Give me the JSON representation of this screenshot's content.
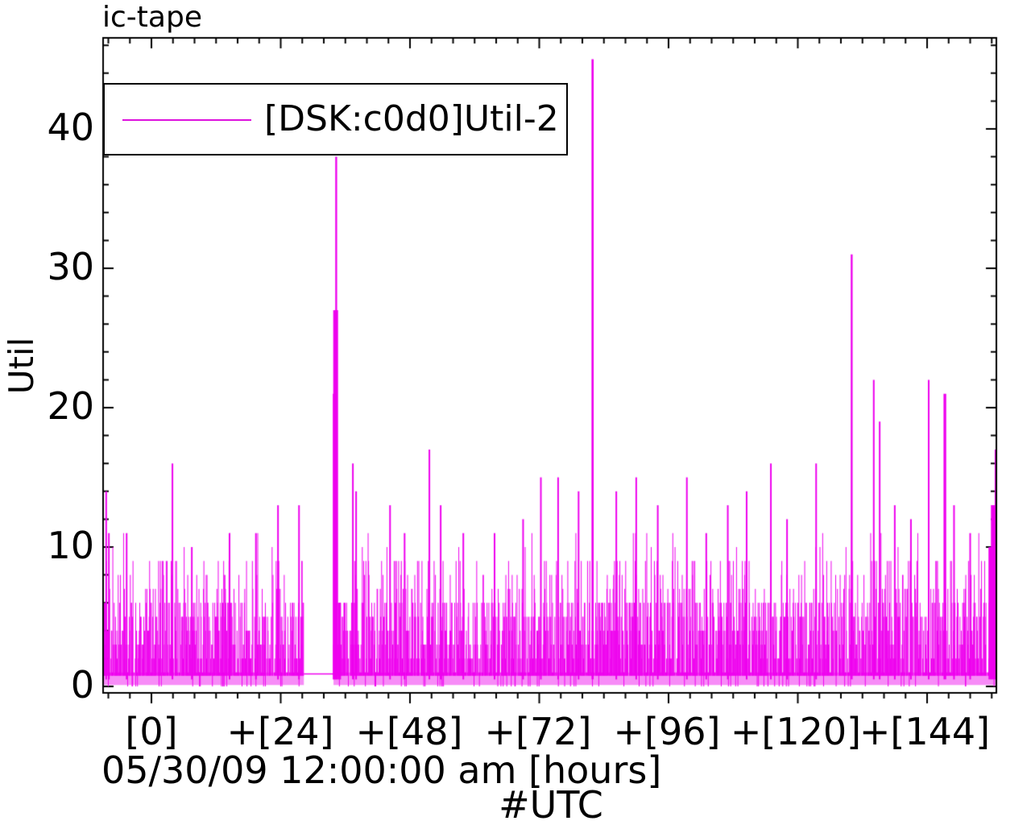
{
  "title": "ic-tape",
  "legend": {
    "label": "[DSK:c0d0]Util-2",
    "line_color": "#dd11dd"
  },
  "colors": {
    "series": "#ee00ee",
    "axis": "#000000",
    "background": "#ffffff"
  },
  "chart_data": {
    "type": "line",
    "style": "impulses",
    "title": "ic-tape",
    "series_name": "[DSK:c0d0]Util-2",
    "series_color": "#ee00ee",
    "ylabel": "Util",
    "xlabel_line1": "05/30/09 12:00:00 am [hours]",
    "xlabel_line2": "#UTC",
    "x_base_time": "05/30/09 12:00:00 am",
    "x_unit": "hours (UTC)",
    "y_tick_labels": [
      "40",
      "30",
      "20",
      "10",
      "0"
    ],
    "y_tick_values": [
      40,
      30,
      20,
      10,
      0
    ],
    "y_minor_tick_step": 2,
    "x_tick_labels": [
      "[0]",
      "+[24]",
      "+[48]",
      "+[72]",
      "+[96]",
      "+[120]",
      "+[144]"
    ],
    "x_tick_hours": [
      0,
      24,
      48,
      72,
      96,
      120,
      144
    ],
    "x_minor_tick_step_hours": 4,
    "xlim_hours": [
      -9,
      157
    ],
    "ylim": [
      0,
      46.5
    ],
    "grid": false,
    "legend_position": "top-left-inside",
    "baseline_value": 1,
    "noise_band": {
      "description": "dense random utilization 1-6 with frequent peaks to 9, occasional 10-11, rare dips to 0",
      "typical_min": 1,
      "typical_max": 6,
      "frequent_peak": 9,
      "occasional_peak": 11,
      "zero_dip_fraction": 0.05
    },
    "gap": {
      "start_hour": 28.3,
      "end_hour": 33.8,
      "value": 1
    },
    "notable_spikes": [
      [
        -8.4,
        14
      ],
      [
        -7.9,
        11
      ],
      [
        -4.6,
        11
      ],
      [
        3.9,
        16
      ],
      [
        7.5,
        10
      ],
      [
        14.5,
        11
      ],
      [
        19.4,
        11
      ],
      [
        23.5,
        13
      ],
      [
        27.4,
        13
      ],
      [
        33.9,
        21,
        0.45
      ],
      [
        34.2,
        27,
        0.9
      ],
      [
        34.3,
        38,
        0.35
      ],
      [
        34.9,
        6,
        0.6
      ],
      [
        37.4,
        16
      ],
      [
        38.0,
        14
      ],
      [
        44.3,
        13
      ],
      [
        47.0,
        11
      ],
      [
        51.6,
        17
      ],
      [
        53.7,
        13
      ],
      [
        57.9,
        11
      ],
      [
        63.7,
        11
      ],
      [
        69.0,
        12
      ],
      [
        72.3,
        15
      ],
      [
        75.5,
        15
      ],
      [
        79.3,
        14
      ],
      [
        81.9,
        45,
        0.4
      ],
      [
        86.3,
        14
      ],
      [
        90.0,
        15
      ],
      [
        94.0,
        13
      ],
      [
        99.4,
        15
      ],
      [
        103.0,
        11
      ],
      [
        107.0,
        13
      ],
      [
        110.5,
        14
      ],
      [
        115.0,
        16
      ],
      [
        118.0,
        12
      ],
      [
        123.4,
        16
      ],
      [
        130.0,
        31,
        0.35
      ],
      [
        134.1,
        22
      ],
      [
        135.2,
        19
      ],
      [
        138.0,
        13
      ],
      [
        141.0,
        12
      ],
      [
        144.3,
        22
      ],
      [
        147.3,
        21,
        0.5
      ],
      [
        149.0,
        13
      ],
      [
        152.0,
        11
      ],
      [
        155.7,
        10,
        0.6
      ],
      [
        156.3,
        13,
        0.9
      ],
      [
        156.7,
        17,
        0.3
      ],
      [
        156.9,
        15,
        0.3
      ]
    ],
    "max_value": 45
  }
}
